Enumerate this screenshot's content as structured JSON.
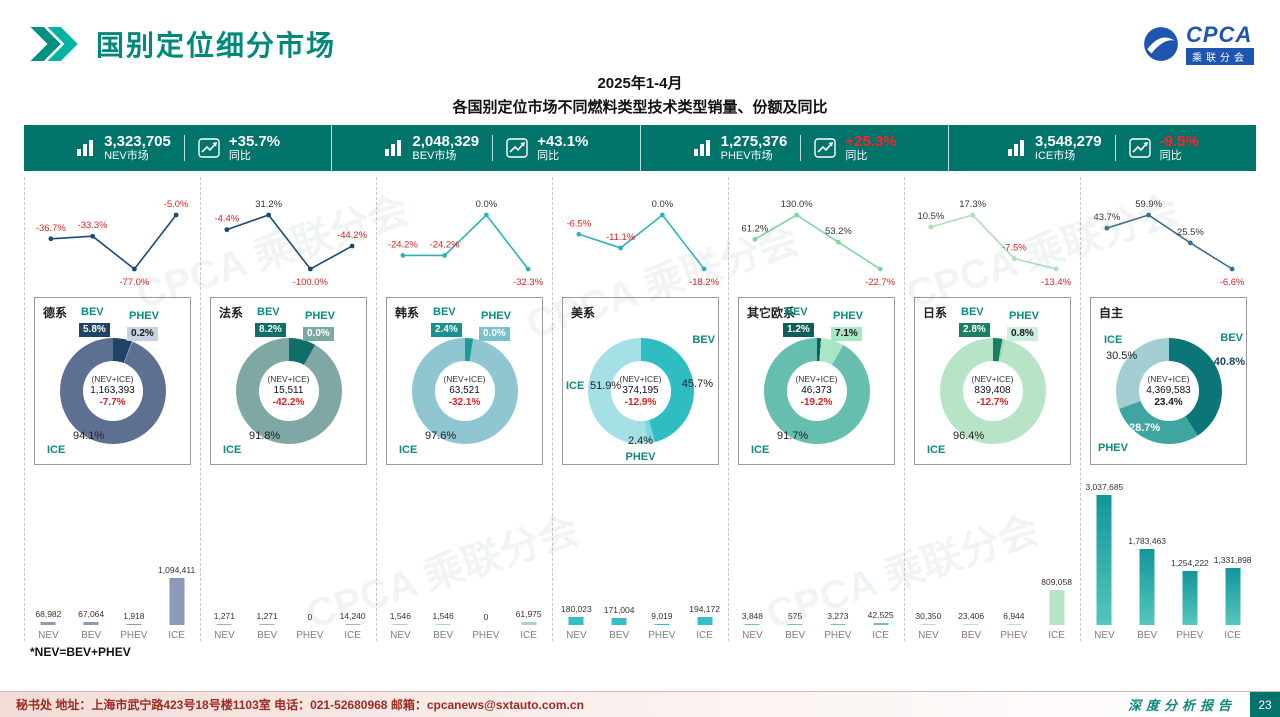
{
  "header": {
    "title": "国别定位细分市场",
    "logo": {
      "brand": "CPCA",
      "sub": "乘联分会"
    }
  },
  "subtitle": {
    "line1": "2025年1-4月",
    "line2": "各国别定位市场不同燃料类型技术类型销量、份额及同比"
  },
  "watermark": "CPCA 乘联分会",
  "kpi_band": {
    "bg": "#00736b",
    "items": [
      {
        "value": "3,323,705",
        "label": "NEV市场",
        "yoy": "+35.7%",
        "yoy_label": "同比",
        "yoy_color": "#ffffff"
      },
      {
        "value": "2,048,329",
        "label": "BEV市场",
        "yoy": "+43.1%",
        "yoy_label": "同比",
        "yoy_color": "#ffffff"
      },
      {
        "value": "1,275,376",
        "label": "PHEV市场",
        "yoy": "+25.3%",
        "yoy_label": "同比",
        "yoy_color": "#ff2222"
      },
      {
        "value": "3,548,279",
        "label": "ICE市场",
        "yoy": "-9.5%",
        "yoy_label": "同比",
        "yoy_color": "#ff2222"
      }
    ]
  },
  "footnote": "*NEV=BEV+PHEV",
  "footer": {
    "left": "秘书处   地址：上海市武宁路423号18号楼1103室  电话：021-52680968   邮箱：cpcanews@sxtauto.com.cn",
    "right": "深度分析报告",
    "page": "23"
  },
  "chart_data": {
    "type": "composite",
    "categories": [
      "NEV",
      "BEV",
      "PHEV",
      "ICE"
    ],
    "bar_scale_max": 3037685,
    "neg_color": "#e02020",
    "pos_color": "#333333",
    "groups": [
      {
        "name": "德系",
        "trend": {
          "values": [
            -36.7,
            -33.3,
            -77.0,
            -5.0
          ],
          "labels": [
            "-36.7%",
            "-33.3%",
            "-77.0%",
            "-5.0%"
          ],
          "line_color": "#1a4a74"
        },
        "donut": {
          "layout": "top",
          "slices": [
            {
              "name": "BEV",
              "pct": 5.8,
              "color": "#1f4565"
            },
            {
              "name": "PHEV",
              "pct": 0.2,
              "color": "#c6d2e0"
            },
            {
              "name": "ICE",
              "pct": 94.1,
              "color": "#5e7092"
            }
          ],
          "bev_label": "BEV",
          "phev_label": "PHEV",
          "ice_label": "ICE",
          "bev_pct": "5.8%",
          "phev_pct": "0.2%",
          "ice_pct": "94.1%",
          "bev_box": {
            "bg": "#1f4565",
            "fg": "#ffffff"
          },
          "phev_box": {
            "bg": "#c6d2e0",
            "fg": "#1a1a1a"
          },
          "center": {
            "line1": "(NEV+ICE)",
            "line2": "1,163,393",
            "line3": "-7.7%",
            "line3_color": "#e02020"
          }
        },
        "bars": {
          "values": [
            68982,
            67064,
            1918,
            1094411
          ],
          "labels": [
            "68,982",
            "67,064",
            "1,918",
            "1,094,411"
          ],
          "color": "#8a9ab8"
        }
      },
      {
        "name": "法系",
        "trend": {
          "values": [
            -4.4,
            31.2,
            -100.0,
            -44.2
          ],
          "labels": [
            "-4.4%",
            "31.2%",
            "-100.0%",
            "-44.2%"
          ],
          "line_color": "#1a4a74"
        },
        "donut": {
          "layout": "top",
          "slices": [
            {
              "name": "BEV",
              "pct": 8.2,
              "color": "#0e6e68"
            },
            {
              "name": "PHEV",
              "pct": 0.0,
              "color": "#bfd8d5"
            },
            {
              "name": "ICE",
              "pct": 91.8,
              "color": "#7fa8a4"
            }
          ],
          "bev_label": "BEV",
          "phev_label": "PHEV",
          "ice_label": "ICE",
          "bev_pct": "8.2%",
          "phev_pct": "0.0%",
          "ice_pct": "91.8%",
          "bev_box": {
            "bg": "#0e6e68",
            "fg": "#ffffff"
          },
          "phev_box": {
            "bg": "#7aa9a4",
            "fg": "#ffffff"
          },
          "center": {
            "line1": "(NEV+ICE)",
            "line2": "15,511",
            "line3": "-42.2%",
            "line3_color": "#e02020"
          }
        },
        "bars": {
          "values": [
            1271,
            1271,
            0,
            14240
          ],
          "labels": [
            "1,271",
            "1,271",
            "0",
            "14,240"
          ],
          "color": "#9fb0c9"
        }
      },
      {
        "name": "韩系",
        "trend": {
          "values": [
            -24.2,
            -24.2,
            0.0,
            -32.3
          ],
          "labels": [
            "-24.2%",
            "-24.2%",
            "0.0%",
            "-32.3%"
          ],
          "line_color": "#2fb3b8"
        },
        "donut": {
          "layout": "top",
          "slices": [
            {
              "name": "BEV",
              "pct": 2.4,
              "color": "#1b9a96"
            },
            {
              "name": "PHEV",
              "pct": 0.0,
              "color": "#cfe9ec"
            },
            {
              "name": "ICE",
              "pct": 97.6,
              "color": "#8fc6d2"
            }
          ],
          "bev_label": "BEV",
          "phev_label": "PHEV",
          "ice_label": "ICE",
          "bev_pct": "2.4%",
          "phev_pct": "0.0%",
          "ice_pct": "97.6%",
          "bev_box": {
            "bg": "#17928e",
            "fg": "#ffffff"
          },
          "phev_box": {
            "bg": "#79c2cc",
            "fg": "#ffffff"
          },
          "center": {
            "line1": "(NEV+ICE)",
            "line2": "63,521",
            "line3": "-32.1%",
            "line3_color": "#e02020"
          }
        },
        "bars": {
          "values": [
            1546,
            1546,
            0,
            61975
          ],
          "labels": [
            "1,546",
            "1,546",
            "0",
            "61,975"
          ],
          "color": "#a7d4dc"
        }
      },
      {
        "name": "美系",
        "trend": {
          "values": [
            -6.5,
            -11.1,
            0.0,
            -18.2
          ],
          "labels": [
            "-6.5%",
            "-11.1%",
            "0.0%",
            "-18.2%"
          ],
          "line_color": "#2fb3b8"
        },
        "donut": {
          "layout": "us",
          "slices": [
            {
              "name": "BEV",
              "pct": 45.7,
              "color": "#2fbdc4"
            },
            {
              "name": "PHEV",
              "pct": 2.4,
              "color": "#7fd8dd"
            },
            {
              "name": "ICE",
              "pct": 51.9,
              "color": "#a5e0e6"
            }
          ],
          "bev_label": "BEV",
          "phev_label": "PHEV",
          "ice_label": "ICE",
          "bev_pct": "45.7%",
          "phev_pct": "2.4%",
          "ice_pct": "51.9%",
          "center": {
            "line1": "(NEV+ICE)",
            "line2": "374,195",
            "line3": "-12.9%",
            "line3_color": "#e02020"
          }
        },
        "bars": {
          "values": [
            180023,
            171004,
            9019,
            194172
          ],
          "labels": [
            "180,023",
            "171,004",
            "9,019",
            "194,172"
          ],
          "color": "#35bfc6"
        }
      },
      {
        "name": "其它欧系",
        "trend": {
          "values": [
            61.2,
            130.0,
            53.2,
            -22.7
          ],
          "labels": [
            "61.2%",
            "130.0%",
            "53.2%",
            "-22.7%"
          ],
          "line_color": "#7ed6a0"
        },
        "donut": {
          "layout": "top",
          "slices": [
            {
              "name": "BEV",
              "pct": 1.2,
              "color": "#0e5f5a"
            },
            {
              "name": "PHEV",
              "pct": 7.1,
              "color": "#a8e6c4"
            },
            {
              "name": "ICE",
              "pct": 91.7,
              "color": "#66bfae"
            }
          ],
          "bev_label": "BEV",
          "phev_label": "PHEV",
          "ice_label": "ICE",
          "bev_pct": "1.2%",
          "phev_pct": "7.1%",
          "ice_pct": "91.7%",
          "bev_box": {
            "bg": "#0e5f5a",
            "fg": "#ffffff"
          },
          "phev_box": {
            "bg": "#a8e6c4",
            "fg": "#1a1a1a"
          },
          "center": {
            "line1": "(NEV+ICE)",
            "line2": "46,373",
            "line3": "-19.2%",
            "line3_color": "#e02020"
          }
        },
        "bars": {
          "values": [
            3848,
            575,
            3273,
            42525
          ],
          "labels": [
            "3,848",
            "575",
            "3,273",
            "42,525"
          ],
          "color": "#6fc3b6"
        }
      },
      {
        "name": "日系",
        "trend": {
          "values": [
            10.5,
            17.3,
            -7.5,
            -13.4
          ],
          "labels": [
            "10.5%",
            "17.3%",
            "-7.5%",
            "-13.4%"
          ],
          "line_color": "#a9dfb7"
        },
        "donut": {
          "layout": "top",
          "slices": [
            {
              "name": "BEV",
              "pct": 2.8,
              "color": "#1b7e63"
            },
            {
              "name": "PHEV",
              "pct": 0.8,
              "color": "#9fd9b4"
            },
            {
              "name": "ICE",
              "pct": 96.4,
              "color": "#b7e4c7"
            }
          ],
          "bev_label": "BEV",
          "phev_label": "PHEV",
          "ice_label": "ICE",
          "bev_pct": "2.8%",
          "phev_pct": "0.8%",
          "ice_pct": "96.4%",
          "bev_box": {
            "bg": "#1b7e63",
            "fg": "#ffffff"
          },
          "phev_box": {
            "bg": "#cdeedd",
            "fg": "#1a1a1a"
          },
          "center": {
            "line1": "(NEV+ICE)",
            "line2": "839,408",
            "line3": "-12.7%",
            "line3_color": "#e02020"
          }
        },
        "bars": {
          "values": [
            30350,
            23406,
            6944,
            809058
          ],
          "labels": [
            "30,350",
            "23,406",
            "6,944",
            "809,058"
          ],
          "color": "#b7e4c7"
        }
      },
      {
        "name": "自主",
        "trend": {
          "values": [
            43.7,
            59.9,
            25.5,
            -6.6
          ],
          "labels": [
            "43.7%",
            "59.9%",
            "25.5%",
            "-6.6%"
          ],
          "line_color": "#3b6e8f"
        },
        "donut": {
          "layout": "cn",
          "slices": [
            {
              "name": "BEV",
              "pct": 40.8,
              "color": "#0c7578"
            },
            {
              "name": "PHEV",
              "pct": 28.7,
              "color": "#3fa5a0"
            },
            {
              "name": "ICE",
              "pct": 30.5,
              "color": "#a3ced2"
            }
          ],
          "bev_label": "BEV",
          "phev_label": "PHEV",
          "ice_label": "ICE",
          "bev_pct": "40.8%",
          "phev_pct": "28.7%",
          "ice_pct": "30.5%",
          "bev_pct_color": "#1f4565",
          "phev_pct_color": "#ffffff",
          "center": {
            "line1": "(NEV+ICE)",
            "line2": "4,369,583",
            "line3": "23.4%",
            "line3_color": "#1a1a1a"
          }
        },
        "bars": {
          "values": [
            3037685,
            1783463,
            1254222,
            1331898
          ],
          "labels": [
            "3,037,685",
            "1,783,463",
            "1,254,222",
            "1,331,898"
          ],
          "color": "#12969c",
          "color2": "#55c6bb"
        }
      }
    ]
  }
}
